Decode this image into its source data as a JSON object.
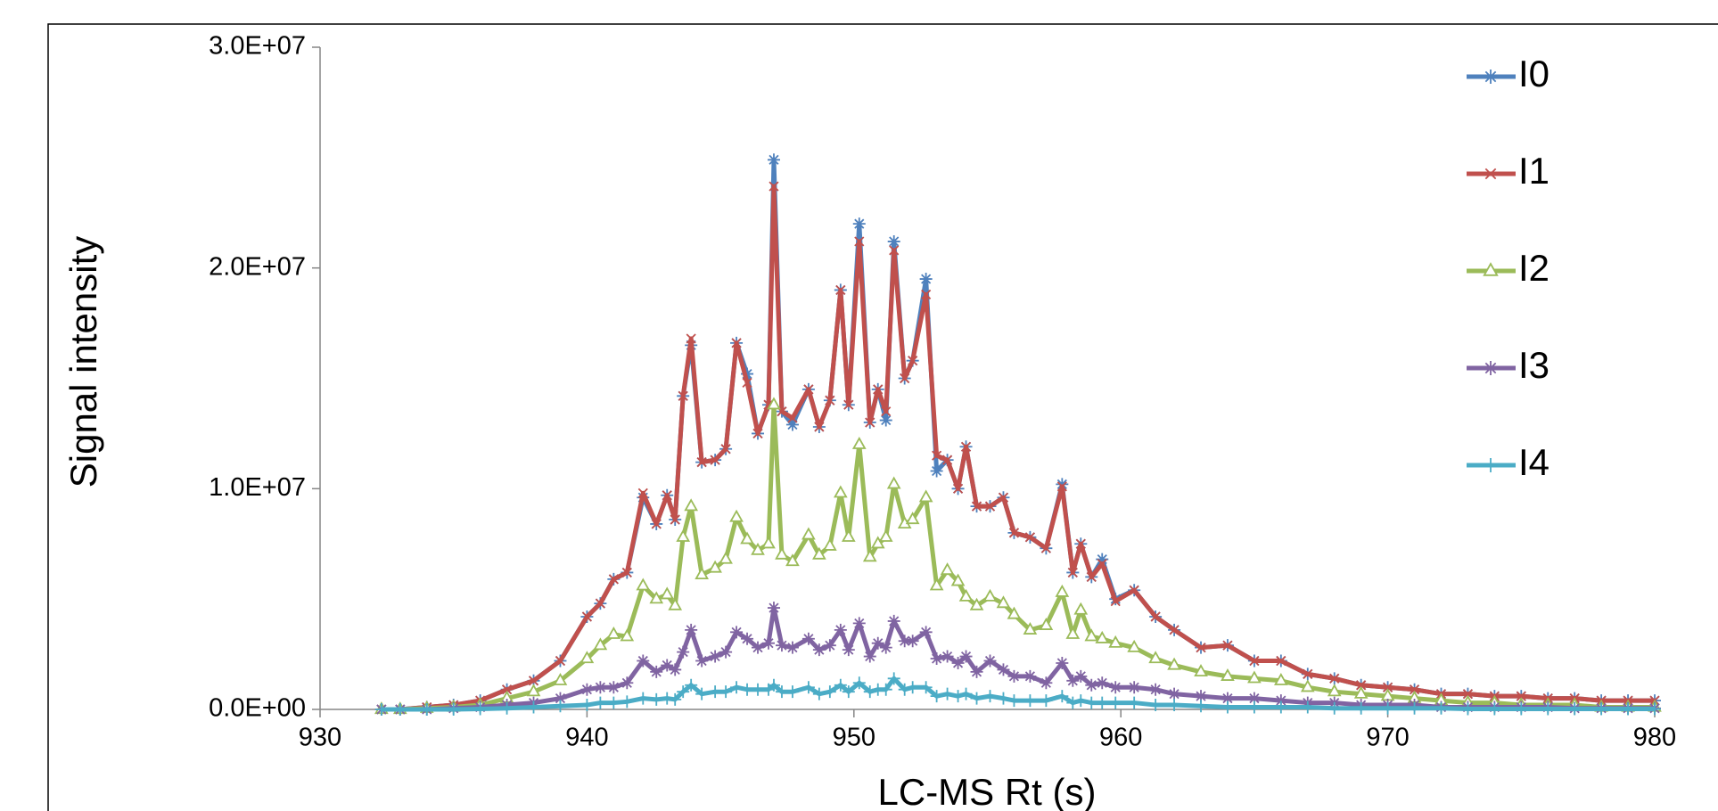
{
  "chart_data": {
    "type": "line",
    "x_label": "LC-MS Rt (s)",
    "y_label": "Signal intensity",
    "x": [
      932.3,
      933,
      934,
      935,
      936,
      937,
      938,
      939,
      940,
      940.5,
      941,
      941.5,
      942.1,
      942.6,
      943,
      943.3,
      943.6,
      943.9,
      944.3,
      944.8,
      945.2,
      945.6,
      946,
      946.4,
      946.8,
      947,
      947.3,
      947.7,
      948.3,
      948.7,
      949.1,
      949.5,
      949.8,
      950.2,
      950.6,
      950.9,
      951.2,
      951.5,
      951.9,
      952.2,
      952.7,
      953.1,
      953.5,
      953.9,
      954.2,
      954.6,
      955.1,
      955.6,
      956,
      956.6,
      957.2,
      957.8,
      958.2,
      958.5,
      958.9,
      959.3,
      959.8,
      960.5,
      961.3,
      962,
      963,
      964,
      965,
      966,
      967,
      968,
      969,
      970,
      971,
      972,
      973,
      974,
      975,
      976,
      977,
      978,
      979,
      980
    ],
    "series": [
      {
        "name": "I0",
        "color": "#4f81bd",
        "marker": "asterisk",
        "values": [
          0,
          0,
          100000.0,
          200000.0,
          400000.0,
          900000.0,
          1300000.0,
          2200000.0,
          4200000.0,
          4800000.0,
          5900000.0,
          6200000.0,
          9600000.0,
          8400000.0,
          9700000.0,
          8600000.0,
          14200000.0,
          16500000.0,
          11200000.0,
          11300000.0,
          11800000.0,
          16600000.0,
          15200000.0,
          12500000.0,
          13800000.0,
          24900000.0,
          13500000.0,
          12900000.0,
          14500000.0,
          12800000.0,
          14000000.0,
          19000000.0,
          13800000.0,
          22000000.0,
          13000000.0,
          14500000.0,
          13100000.0,
          21200000.0,
          15000000.0,
          15800000.0,
          19500000.0,
          10800000.0,
          11300000.0,
          10000000.0,
          11900000.0,
          9200000.0,
          9200000.0,
          9600000.0,
          8000000.0,
          7800000.0,
          7300000.0,
          10200000.0,
          6200000.0,
          7500000.0,
          6000000.0,
          6800000.0,
          5000000.0,
          5400000.0,
          4200000.0,
          3600000.0,
          2800000.0,
          2900000.0,
          2200000.0,
          2200000.0,
          1600000.0,
          1400000.0,
          1100000.0,
          1000000.0,
          900000.0,
          700000.0,
          700000.0,
          600000.0,
          600000.0,
          500000.0,
          500000.0,
          400000.0,
          400000.0,
          400000.0
        ]
      },
      {
        "name": "I1",
        "color": "#c0504d",
        "marker": "cross",
        "values": [
          0,
          0,
          100000.0,
          200000.0,
          400000.0,
          900000.0,
          1300000.0,
          2200000.0,
          4200000.0,
          4800000.0,
          5900000.0,
          6200000.0,
          9800000.0,
          8400000.0,
          9700000.0,
          8600000.0,
          14200000.0,
          16800000.0,
          11200000.0,
          11300000.0,
          11800000.0,
          16600000.0,
          14800000.0,
          12500000.0,
          13800000.0,
          23700000.0,
          13500000.0,
          13200000.0,
          14500000.0,
          12800000.0,
          14000000.0,
          19000000.0,
          13800000.0,
          21200000.0,
          13000000.0,
          14500000.0,
          13500000.0,
          20800000.0,
          15000000.0,
          15800000.0,
          18800000.0,
          11500000.0,
          11300000.0,
          10000000.0,
          11900000.0,
          9200000.0,
          9200000.0,
          9600000.0,
          8000000.0,
          7800000.0,
          7300000.0,
          10100000.0,
          6200000.0,
          7500000.0,
          6000000.0,
          6600000.0,
          4900000.0,
          5400000.0,
          4200000.0,
          3600000.0,
          2800000.0,
          2900000.0,
          2200000.0,
          2200000.0,
          1600000.0,
          1400000.0,
          1100000.0,
          1000000.0,
          900000.0,
          700000.0,
          700000.0,
          600000.0,
          600000.0,
          500000.0,
          500000.0,
          400000.0,
          400000.0,
          400000.0
        ]
      },
      {
        "name": "I2",
        "color": "#9bbb59",
        "marker": "triangle",
        "values": [
          0,
          0,
          50000.0,
          100000.0,
          200000.0,
          500000.0,
          800000.0,
          1300000.0,
          2300000.0,
          2900000.0,
          3400000.0,
          3300000.0,
          5600000.0,
          5000000.0,
          5200000.0,
          4700000.0,
          7800000.0,
          9200000.0,
          6100000.0,
          6400000.0,
          6800000.0,
          8700000.0,
          7700000.0,
          7200000.0,
          7500000.0,
          13800000.0,
          7000000.0,
          6700000.0,
          7900000.0,
          7000000.0,
          7400000.0,
          9800000.0,
          7800000.0,
          12000000.0,
          6900000.0,
          7500000.0,
          7800000.0,
          10200000.0,
          8400000.0,
          8600000.0,
          9600000.0,
          5600000.0,
          6300000.0,
          5800000.0,
          5100000.0,
          4700000.0,
          5100000.0,
          4800000.0,
          4300000.0,
          3600000.0,
          3800000.0,
          5300000.0,
          3400000.0,
          4500000.0,
          3300000.0,
          3200000.0,
          3000000.0,
          2800000.0,
          2300000.0,
          2000000.0,
          1700000.0,
          1500000.0,
          1400000.0,
          1300000.0,
          1000000.0,
          800000.0,
          700000.0,
          600000.0,
          500000.0,
          400000.0,
          300000.0,
          300000.0,
          200000.0,
          200000.0,
          200000.0,
          100000.0,
          100000.0,
          100000.0
        ]
      },
      {
        "name": "I3",
        "color": "#8064a2",
        "marker": "asterisk",
        "values": [
          0,
          0,
          0,
          50000.0,
          100000.0,
          200000.0,
          300000.0,
          500000.0,
          900000.0,
          1000000.0,
          1000000.0,
          1200000.0,
          2200000.0,
          1700000.0,
          2000000.0,
          1800000.0,
          2600000.0,
          3600000.0,
          2200000.0,
          2400000.0,
          2600000.0,
          3500000.0,
          3200000.0,
          2800000.0,
          3000000.0,
          4600000.0,
          2900000.0,
          2800000.0,
          3200000.0,
          2700000.0,
          2900000.0,
          3600000.0,
          2700000.0,
          3900000.0,
          2400000.0,
          3000000.0,
          2800000.0,
          4000000.0,
          3100000.0,
          3100000.0,
          3500000.0,
          2300000.0,
          2400000.0,
          2100000.0,
          2400000.0,
          1700000.0,
          2200000.0,
          1800000.0,
          1500000.0,
          1500000.0,
          1200000.0,
          2100000.0,
          1300000.0,
          1500000.0,
          1100000.0,
          1200000.0,
          1000000.0,
          1000000.0,
          900000.0,
          700000.0,
          600000.0,
          500000.0,
          500000.0,
          400000.0,
          300000.0,
          300000.0,
          200000.0,
          200000.0,
          200000.0,
          100000.0,
          100000.0,
          100000.0,
          100000.0,
          100000.0,
          50000.0,
          50000.0,
          50000.0,
          50000.0
        ]
      },
      {
        "name": "I4",
        "color": "#4bacc6",
        "marker": "plus",
        "values": [
          0,
          0,
          0,
          0,
          20000.0,
          50000.0,
          100000.0,
          150000.0,
          200000.0,
          300000.0,
          300000.0,
          350000.0,
          500000.0,
          450000.0,
          500000.0,
          450000.0,
          800000.0,
          1100000.0,
          700000.0,
          800000.0,
          800000.0,
          1000000.0,
          900000.0,
          900000.0,
          900000.0,
          1100000.0,
          800000.0,
          800000.0,
          1000000.0,
          700000.0,
          800000.0,
          1100000.0,
          800000.0,
          1200000.0,
          800000.0,
          900000.0,
          900000.0,
          1400000.0,
          900000.0,
          1000000.0,
          1000000.0,
          600000.0,
          700000.0,
          600000.0,
          700000.0,
          500000.0,
          600000.0,
          500000.0,
          400000.0,
          400000.0,
          400000.0,
          600000.0,
          300000.0,
          400000.0,
          300000.0,
          300000.0,
          300000.0,
          300000.0,
          200000.0,
          200000.0,
          150000.0,
          100000.0,
          100000.0,
          100000.0,
          100000.0,
          50000.0,
          50000.0,
          50000.0,
          50000.0,
          50000.0,
          20000.0,
          20000.0,
          20000.0,
          20000.0,
          20000.0,
          20000.0,
          20000.0,
          20000.0
        ]
      }
    ],
    "xlim": [
      930,
      980
    ],
    "xticks": [
      930,
      940,
      950,
      960,
      970,
      980
    ],
    "ylim": [
      0,
      30000000
    ],
    "yticks": [
      {
        "value": 0,
        "label": "0.0E+00"
      },
      {
        "value": 10000000,
        "label": "1.0E+07"
      },
      {
        "value": 20000000,
        "label": "2.0E+07"
      },
      {
        "value": 30000000,
        "label": "3.0E+07"
      }
    ],
    "grid": false,
    "legend": "right"
  }
}
